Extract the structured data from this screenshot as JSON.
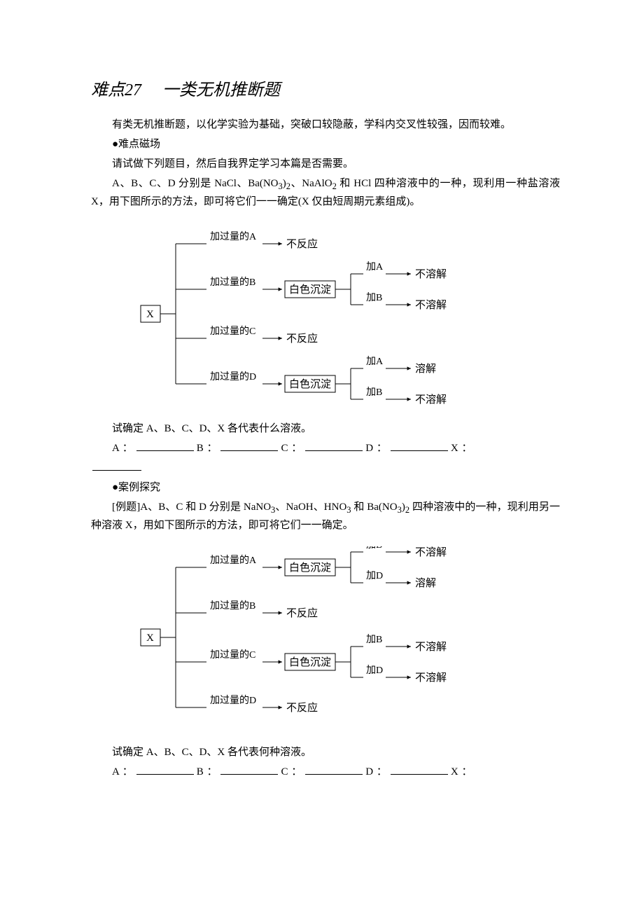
{
  "title": "难点27　 一类无机推断题",
  "intro": "有类无机推断题，以化学实验为基础，突破口较隐蔽，学科内交叉性较强，因而较难。",
  "sec1_head": "●难点磁场",
  "sec1_p1": "请试做下列题目，然后自我界定学习本篇是否需要。",
  "sec1_p2_part1": "A、B、C、D 分别是 NaCl、Ba(NO",
  "sec1_p2_sub1": "3",
  "sec1_p2_part2": ")",
  "sec1_p2_sub2": "2",
  "sec1_p2_part3": "、NaAlO",
  "sec1_p2_sub3": "2",
  "sec1_p2_part4": " 和 HCl 四种溶液中的一种，现利用一种盐溶液 X，用下图所示的方法，即可将它们一一确定(X 仅由短周期元素组成)。",
  "sec1_q": "试确定 A、B、C、D、X 各代表什么溶液。",
  "ans_A": "A  ：",
  "ans_B": "B  ：",
  "ans_C": "C  ：",
  "ans_D": "D  ：",
  "ans_X": "X  ：",
  "sec2_head": "●案例探究",
  "sec2_p1_part1": "[例题]A、B、C 和 D 分别是 NaNO",
  "sec2_p1_sub1": "3",
  "sec2_p1_part2": "、NaOH、HNO",
  "sec2_p1_sub2": "3",
  "sec2_p1_part3": " 和 Ba(NO",
  "sec2_p1_sub3": "3",
  "sec2_p1_part4": ")",
  "sec2_p1_sub4": "2",
  "sec2_p1_part5": " 四种溶液中的一种，现利用另一种溶液 X，用如下图所示的方法，即可将它们一一确定。",
  "sec2_q": "试确定 A、B、C、D、X 各代表何种溶液。",
  "diagram1": {
    "root": "X",
    "branch_prefix": "加过量的",
    "result_no_react": "不反应",
    "result_precip": "白色沉淀",
    "result_dissolve": "溶解",
    "result_no_dissolve": "不溶解",
    "sub_prefix": "加",
    "branches": [
      {
        "reagent": "A",
        "outcome": "none"
      },
      {
        "reagent": "B",
        "outcome": "precip",
        "sub": [
          {
            "add": "A",
            "res": "不溶解"
          },
          {
            "add": "B",
            "res": "不溶解"
          }
        ]
      },
      {
        "reagent": "C",
        "outcome": "none"
      },
      {
        "reagent": "D",
        "outcome": "precip",
        "sub": [
          {
            "add": "A",
            "res": "溶解"
          },
          {
            "add": "B",
            "res": "不溶解"
          }
        ]
      }
    ],
    "colors": {
      "line": "#000000",
      "text": "#000000",
      "box_fill": "#ffffff"
    }
  },
  "diagram2": {
    "root": "X",
    "branch_prefix": "加过量的",
    "result_no_react": "不反应",
    "result_precip": "白色沉淀",
    "result_dissolve": "溶解",
    "result_no_dissolve": "不溶解",
    "sub_prefix": "加",
    "branches": [
      {
        "reagent": "A",
        "outcome": "precip",
        "sub": [
          {
            "add": "B",
            "res": "不溶解"
          },
          {
            "add": "D",
            "res": "溶解"
          }
        ]
      },
      {
        "reagent": "B",
        "outcome": "none"
      },
      {
        "reagent": "C",
        "outcome": "precip",
        "sub": [
          {
            "add": "B",
            "res": "不溶解"
          },
          {
            "add": "D",
            "res": "不溶解"
          }
        ]
      },
      {
        "reagent": "D",
        "outcome": "none"
      }
    ],
    "colors": {
      "line": "#000000",
      "text": "#000000",
      "box_fill": "#ffffff"
    }
  }
}
